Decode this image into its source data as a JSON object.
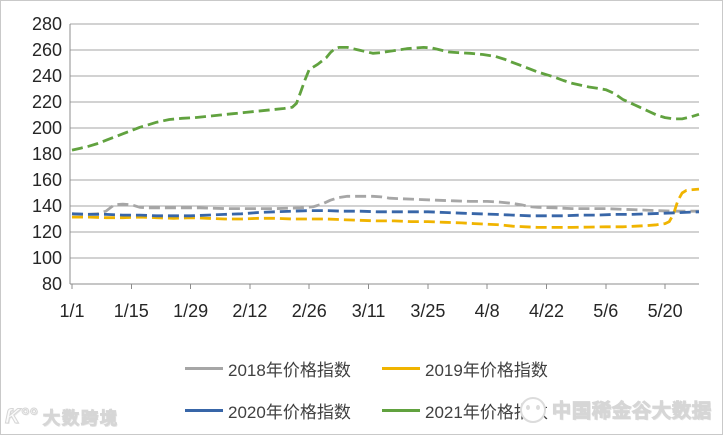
{
  "watermarks": {
    "bottom_left": {
      "logo_text": "Ƙ°°",
      "text": "大数跨境"
    },
    "bottom_right": {
      "text": "中国稀金谷大数据"
    }
  },
  "chart_data": {
    "type": "line",
    "title": "",
    "xlabel": "",
    "ylabel": "",
    "ylim": [
      80,
      280
    ],
    "y_ticks": [
      280,
      260,
      240,
      220,
      200,
      180,
      160,
      140,
      120,
      100,
      80
    ],
    "x_range_days": [
      0,
      148
    ],
    "x_ticks": [
      {
        "day": 0,
        "label": "1/1"
      },
      {
        "day": 14,
        "label": "1/15"
      },
      {
        "day": 28,
        "label": "1/29"
      },
      {
        "day": 42,
        "label": "2/12"
      },
      {
        "day": 56,
        "label": "2/26"
      },
      {
        "day": 70,
        "label": "3/11"
      },
      {
        "day": 84,
        "label": "3/25"
      },
      {
        "day": 98,
        "label": "4/8"
      },
      {
        "day": 112,
        "label": "4/22"
      },
      {
        "day": 126,
        "label": "5/6"
      },
      {
        "day": 140,
        "label": "5/20"
      }
    ],
    "grid": "horizontal",
    "legend_position": "bottom",
    "line_style": "dashed",
    "style": {
      "grid_color": "#a6a6a6",
      "axis_color": "#8c8c8c",
      "text_color": "#262626"
    },
    "series": [
      {
        "name": "2018年价格指数",
        "color": "#a6a6a6",
        "points": [
          [
            0,
            134
          ],
          [
            3,
            133.5
          ],
          [
            6,
            134
          ],
          [
            8,
            136
          ],
          [
            10,
            141
          ],
          [
            12,
            141.5
          ],
          [
            14,
            141
          ],
          [
            16,
            139
          ],
          [
            18,
            138.5
          ],
          [
            24,
            138.5
          ],
          [
            30,
            138.5
          ],
          [
            36,
            138
          ],
          [
            42,
            138
          ],
          [
            48,
            138
          ],
          [
            54,
            138.5
          ],
          [
            57,
            139.5
          ],
          [
            59,
            141.5
          ],
          [
            61,
            144.5
          ],
          [
            63,
            146.5
          ],
          [
            65,
            147.5
          ],
          [
            71,
            147.5
          ],
          [
            73,
            147
          ],
          [
            75,
            146
          ],
          [
            78,
            145.5
          ],
          [
            82,
            145
          ],
          [
            86,
            144.5
          ],
          [
            90,
            144
          ],
          [
            94,
            143.5
          ],
          [
            98,
            143.5
          ],
          [
            101,
            143
          ],
          [
            104,
            142
          ],
          [
            106,
            141
          ],
          [
            108,
            139.5
          ],
          [
            110,
            139
          ],
          [
            114,
            138.5
          ],
          [
            118,
            138
          ],
          [
            122,
            138
          ],
          [
            126,
            138
          ],
          [
            130,
            137.5
          ],
          [
            134,
            137
          ],
          [
            138,
            136.5
          ],
          [
            142,
            136
          ],
          [
            145,
            136
          ],
          [
            148,
            136
          ]
        ]
      },
      {
        "name": "2019年价格指数",
        "color": "#f0b400",
        "points": [
          [
            0,
            131.5
          ],
          [
            4,
            131.5
          ],
          [
            8,
            131
          ],
          [
            12,
            131
          ],
          [
            16,
            131.5
          ],
          [
            20,
            131
          ],
          [
            24,
            130.5
          ],
          [
            28,
            131
          ],
          [
            32,
            130.5
          ],
          [
            36,
            130
          ],
          [
            40,
            130
          ],
          [
            44,
            130.5
          ],
          [
            48,
            130.5
          ],
          [
            52,
            130
          ],
          [
            56,
            130
          ],
          [
            60,
            130
          ],
          [
            64,
            129.5
          ],
          [
            68,
            129
          ],
          [
            72,
            128.5
          ],
          [
            76,
            128.5
          ],
          [
            80,
            128
          ],
          [
            84,
            128
          ],
          [
            88,
            127.5
          ],
          [
            92,
            127
          ],
          [
            95,
            126.5
          ],
          [
            98,
            126
          ],
          [
            101,
            125.5
          ],
          [
            104,
            124.5
          ],
          [
            107,
            124
          ],
          [
            110,
            123.5
          ],
          [
            114,
            123.5
          ],
          [
            118,
            123.5
          ],
          [
            122,
            123.8
          ],
          [
            126,
            124
          ],
          [
            130,
            124
          ],
          [
            133,
            124.5
          ],
          [
            136,
            125
          ],
          [
            138,
            125.5
          ],
          [
            140,
            126.5
          ],
          [
            141,
            128
          ],
          [
            142,
            134
          ],
          [
            143,
            144
          ],
          [
            144,
            150
          ],
          [
            145,
            152
          ],
          [
            146,
            152.5
          ],
          [
            148,
            153
          ]
        ]
      },
      {
        "name": "2020年价格指数",
        "color": "#3866a8",
        "points": [
          [
            0,
            134
          ],
          [
            4,
            133.5
          ],
          [
            8,
            133.5
          ],
          [
            12,
            133
          ],
          [
            16,
            133
          ],
          [
            20,
            132.5
          ],
          [
            24,
            132.5
          ],
          [
            28,
            132.5
          ],
          [
            32,
            133
          ],
          [
            36,
            133.5
          ],
          [
            40,
            134
          ],
          [
            44,
            135
          ],
          [
            48,
            135.5
          ],
          [
            52,
            136
          ],
          [
            56,
            136.5
          ],
          [
            60,
            136.5
          ],
          [
            64,
            136
          ],
          [
            68,
            136
          ],
          [
            72,
            135.5
          ],
          [
            76,
            135.5
          ],
          [
            80,
            135.5
          ],
          [
            84,
            135.5
          ],
          [
            88,
            135
          ],
          [
            92,
            134.5
          ],
          [
            96,
            134
          ],
          [
            100,
            133.5
          ],
          [
            104,
            133
          ],
          [
            108,
            132.5
          ],
          [
            112,
            132.5
          ],
          [
            116,
            132.5
          ],
          [
            120,
            133
          ],
          [
            124,
            133
          ],
          [
            128,
            133.5
          ],
          [
            132,
            133.5
          ],
          [
            136,
            134
          ],
          [
            140,
            134.5
          ],
          [
            144,
            135
          ],
          [
            148,
            135.5
          ]
        ]
      },
      {
        "name": "2021年价格指数",
        "color": "#61a23f",
        "points": [
          [
            0,
            183
          ],
          [
            2,
            184.5
          ],
          [
            4,
            186
          ],
          [
            6,
            188
          ],
          [
            8,
            190.5
          ],
          [
            10,
            193
          ],
          [
            12,
            195.5
          ],
          [
            14,
            198
          ],
          [
            16,
            200.5
          ],
          [
            18,
            202.5
          ],
          [
            20,
            204.5
          ],
          [
            23,
            206.5
          ],
          [
            26,
            207.5
          ],
          [
            29,
            208
          ],
          [
            32,
            209
          ],
          [
            35,
            210
          ],
          [
            38,
            211
          ],
          [
            41,
            212
          ],
          [
            44,
            213
          ],
          [
            47,
            214
          ],
          [
            50,
            215
          ],
          [
            52,
            216
          ],
          [
            53,
            219
          ],
          [
            54,
            228
          ],
          [
            55,
            237
          ],
          [
            56,
            245
          ],
          [
            57,
            247
          ],
          [
            58,
            249
          ],
          [
            60,
            254
          ],
          [
            61,
            258
          ],
          [
            62,
            261
          ],
          [
            63,
            262
          ],
          [
            65,
            262
          ],
          [
            67,
            260.5
          ],
          [
            69,
            259
          ],
          [
            71,
            257.5
          ],
          [
            73,
            258
          ],
          [
            75,
            259
          ],
          [
            77,
            260
          ],
          [
            79,
            261
          ],
          [
            81,
            261.5
          ],
          [
            83,
            262
          ],
          [
            85,
            261.5
          ],
          [
            87,
            260
          ],
          [
            89,
            258.5
          ],
          [
            91,
            258
          ],
          [
            94,
            257.5
          ],
          [
            97,
            256.5
          ],
          [
            100,
            255
          ],
          [
            102,
            253
          ],
          [
            104,
            250.5
          ],
          [
            106,
            248
          ],
          [
            108,
            245.5
          ],
          [
            110,
            243
          ],
          [
            112,
            241
          ],
          [
            114,
            239
          ],
          [
            116,
            236.5
          ],
          [
            118,
            234.5
          ],
          [
            120,
            233
          ],
          [
            122,
            231.5
          ],
          [
            124,
            230.5
          ],
          [
            126,
            229.5
          ],
          [
            128,
            226.5
          ],
          [
            130,
            222
          ],
          [
            132,
            219
          ],
          [
            134,
            216
          ],
          [
            136,
            213
          ],
          [
            138,
            210
          ],
          [
            140,
            208
          ],
          [
            142,
            207
          ],
          [
            144,
            207
          ],
          [
            146,
            208.5
          ],
          [
            148,
            210.5
          ]
        ]
      }
    ]
  }
}
